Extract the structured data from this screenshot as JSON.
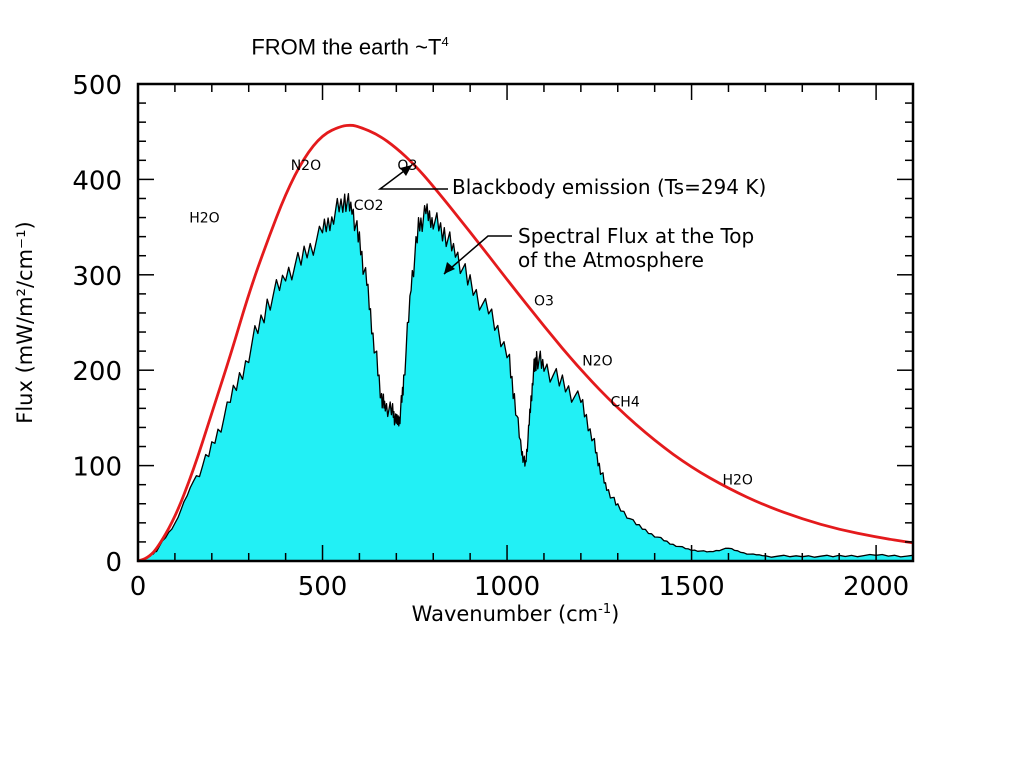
{
  "slide": {
    "title": "FROM the earth ~T",
    "title_sup": "4"
  },
  "chart_data": {
    "type": "area",
    "title": "",
    "xlabel": "Wavenumber (cm",
    "xlabel_sup": "-1",
    "xlabel_end": ")",
    "ylabel": "Flux (mW/m²/cm⁻¹)",
    "xlim": [
      0,
      2100
    ],
    "ylim": [
      0,
      500
    ],
    "xticks": [
      0,
      500,
      1000,
      1500,
      2000
    ],
    "yticks": [
      0,
      100,
      200,
      300,
      400,
      500
    ],
    "grid": false,
    "colors": {
      "blackbody": "#e41a1c",
      "flux_fill": "#22f0f5",
      "flux_line": "#000000"
    },
    "series": [
      {
        "name": "Blackbody emission (Ts=294 K)",
        "kind": "line",
        "x": [
          0,
          25,
          50,
          100,
          150,
          200,
          250,
          300,
          350,
          400,
          450,
          500,
          550,
          580,
          600,
          650,
          700,
          750,
          800,
          900,
          1000,
          1100,
          1200,
          1300,
          1400,
          1500,
          1600,
          1700,
          1800,
          1900,
          2000,
          2100
        ],
        "y": [
          0,
          3,
          12,
          45,
          95,
          155,
          215,
          280,
          335,
          385,
          423,
          447,
          456,
          457,
          455,
          447,
          433,
          415,
          393,
          345,
          295,
          246,
          200,
          160,
          126,
          98,
          76,
          58,
          44,
          33,
          25,
          19
        ]
      },
      {
        "name": "Spectral Flux at the Top of the Atmosphere",
        "kind": "area",
        "x": [
          0,
          25,
          50,
          100,
          150,
          200,
          250,
          300,
          350,
          400,
          450,
          500,
          530,
          560,
          580,
          600,
          620,
          640,
          660,
          670,
          690,
          700,
          710,
          720,
          740,
          760,
          780,
          800,
          830,
          860,
          900,
          950,
          1000,
          1020,
          1040,
          1050,
          1060,
          1070,
          1080,
          1100,
          1150,
          1200,
          1230,
          1250,
          1270,
          1300,
          1350,
          1400,
          1450,
          1500,
          1550,
          1600,
          1650,
          1700,
          1800,
          1900,
          2000,
          2100
        ],
        "y": [
          0,
          4,
          12,
          40,
          85,
          125,
          175,
          230,
          280,
          310,
          330,
          355,
          375,
          390,
          380,
          345,
          300,
          240,
          180,
          170,
          165,
          152,
          160,
          200,
          300,
          360,
          375,
          370,
          355,
          335,
          300,
          270,
          235,
          180,
          120,
          105,
          150,
          205,
          225,
          215,
          195,
          175,
          140,
          105,
          80,
          60,
          40,
          28,
          18,
          12,
          10,
          14,
          8,
          6,
          6,
          6,
          7,
          6
        ]
      }
    ],
    "annotations": [
      {
        "text": "H2O",
        "x": 180,
        "y": 355
      },
      {
        "text": "N2O",
        "x": 455,
        "y": 410
      },
      {
        "text": "O3",
        "x": 730,
        "y": 410
      },
      {
        "text": "CO2",
        "x": 625,
        "y": 368
      },
      {
        "text": "O3",
        "x": 1100,
        "y": 268
      },
      {
        "text": "N2O",
        "x": 1245,
        "y": 205
      },
      {
        "text": "CH4",
        "x": 1320,
        "y": 162
      },
      {
        "text": "H2O",
        "x": 1625,
        "y": 80
      }
    ]
  }
}
